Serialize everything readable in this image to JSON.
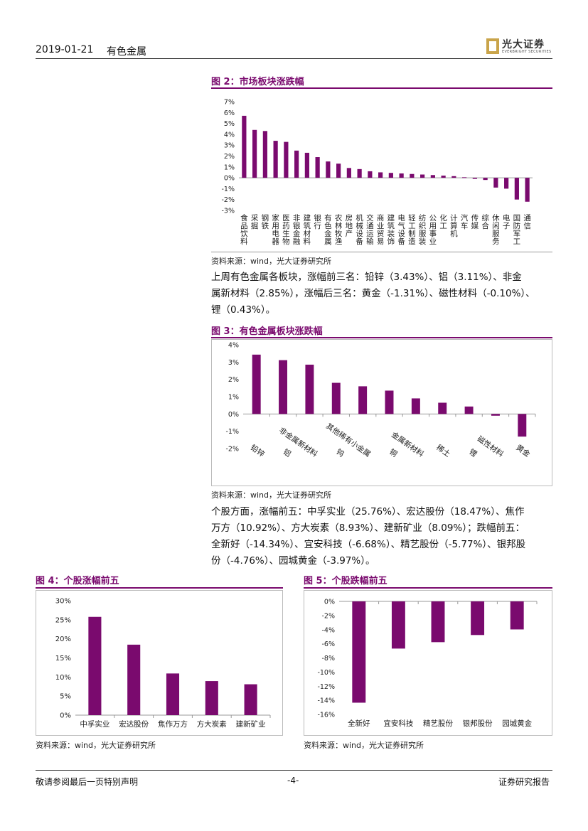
{
  "header": {
    "date": "2019-01-21",
    "category": "有色金属"
  },
  "logo": {
    "name": "光大证券",
    "sub": "EVERBRIGHT SECURITIES"
  },
  "figures": [
    {
      "title": "图 2：市场板块涨跌幅",
      "source": "资料来源：wind，光大证券研究所",
      "chart_data": {
        "type": "bar",
        "categories": [
          "食品饮料",
          "采掘",
          "钢铁",
          "家用电器",
          "医药生物",
          "非银金融",
          "建筑材料",
          "银行",
          "有色金属",
          "农林牧渔",
          "房地产",
          "机械设备",
          "交通运输",
          "商业贸易",
          "建筑装饰",
          "电气设备",
          "轻工制造",
          "纺织服装",
          "公用事业",
          "化工",
          "计算机",
          "汽车",
          "传媒",
          "综合",
          "休闲服务",
          "电子",
          "国防军工",
          "通信"
        ],
        "values": [
          5.7,
          4.4,
          4.3,
          3.4,
          3.3,
          2.5,
          2.3,
          1.9,
          1.5,
          1.3,
          0.9,
          0.8,
          0.6,
          0.5,
          0.45,
          0.4,
          0.35,
          0.3,
          0.25,
          0.2,
          0.15,
          0.05,
          -0.1,
          -0.2,
          -0.9,
          -1.0,
          -2.0,
          -2.2
        ],
        "yticks": [
          "7%",
          "6%",
          "5%",
          "4%",
          "3%",
          "2%",
          "1%",
          "0%",
          "-1%",
          "-2%",
          "-3%"
        ],
        "ylim": [
          -3,
          7
        ],
        "color": "#7a0a6e"
      }
    },
    {
      "title": "图 3：有色金属板块涨跌幅",
      "source": "资料来源：wind，光大证券研究所",
      "chart_data": {
        "type": "bar",
        "categories": [
          "铅锌",
          "铝",
          "非金属新材料",
          "钨",
          "其他稀有小金属",
          "铜",
          "金属新材料",
          "稀土",
          "锂",
          "磁性材料",
          "黄金"
        ],
        "values": [
          3.43,
          3.11,
          2.85,
          1.8,
          1.6,
          1.35,
          0.9,
          0.65,
          0.43,
          -0.1,
          -1.31
        ],
        "yticks": [
          "4%",
          "3%",
          "2%",
          "1%",
          "0%",
          "-1%",
          "-2%"
        ],
        "ylim": [
          -2,
          4
        ],
        "color": "#7a0a6e"
      }
    },
    {
      "title": "图 4：个股涨幅前五",
      "source": "资料来源：wind，光大证券研究所",
      "chart_data": {
        "type": "bar",
        "categories": [
          "中孚实业",
          "宏达股份",
          "焦作万方",
          "方大炭素",
          "建新矿业"
        ],
        "values": [
          25.76,
          18.47,
          10.92,
          8.93,
          8.09
        ],
        "yticks": [
          "30%",
          "25%",
          "20%",
          "15%",
          "10%",
          "5%",
          "0%"
        ],
        "ylim": [
          0,
          30
        ],
        "color": "#7a0a6e"
      }
    },
    {
      "title": "图 5：个股跌幅前五",
      "source": "资料来源：wind，光大证券研究所",
      "chart_data": {
        "type": "bar",
        "categories": [
          "全新好",
          "宜安科技",
          "精艺股份",
          "银邦股份",
          "园城黄金"
        ],
        "values": [
          -14.34,
          -6.68,
          -5.77,
          -4.76,
          -3.97
        ],
        "yticks": [
          "0%",
          "-2%",
          "-4%",
          "-6%",
          "-8%",
          "-10%",
          "-12%",
          "-14%",
          "-16%"
        ],
        "ylim": [
          -16,
          0
        ],
        "color": "#7a0a6e"
      }
    }
  ],
  "paragraphs": [
    [
      "上周有色金属各板块，涨幅前三名：铅锌（3.43%）、铝（3.11%）、非金",
      "属新材料（2.85%），涨幅后三名：黄金（-1.31%）、磁性材料（-0.10%）、",
      "锂（0.43%）。"
    ],
    [
      "个股方面，涨幅前五：中孚实业（25.76%）、宏达股份（18.47%）、焦作",
      "万方（10.92%）、方大炭素（8.93%）、建新矿业（8.09%）；跌幅前五：",
      "全新好（-14.34%）、宜安科技（-6.68%）、精艺股份（-5.77%）、银邦股",
      "份（-4.76%）、园城黄金（-3.97%）。"
    ]
  ],
  "footer": {
    "left": "敬请参阅最后一页特别声明",
    "page": "-4-",
    "right": "证券研究报告"
  }
}
